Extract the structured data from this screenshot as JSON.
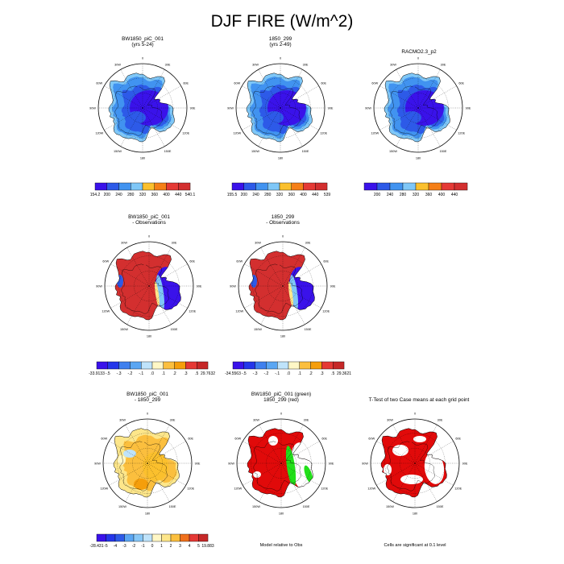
{
  "title": "DJF FIRE (W/m^2)",
  "lon_labels": [
    "0",
    "30E",
    "60E",
    "90E",
    "120E",
    "150E",
    "180",
    "150W",
    "120W",
    "90W",
    "60W",
    "30W"
  ],
  "palettes": {
    "abs": [
      "#3a12ea",
      "#2d5ae8",
      "#4193f0",
      "#7fc7f7",
      "#f9f06b",
      "#fbc02d",
      "#f57f17",
      "#e53935",
      "#d32f2f"
    ],
    "diff": [
      "#3a12ea",
      "#2436ea",
      "#2d5ae8",
      "#3f80ee",
      "#5aa6f3",
      "#87c7f7",
      "#bfe3fb",
      "#fff7c6",
      "#fde68a",
      "#fbbf3e",
      "#f59e0b",
      "#f0701c",
      "#e53935",
      "#c62828"
    ],
    "significant_red": "#e10a0a",
    "model_red": "#e10a0a",
    "model_green": "#22e01a",
    "gray": "#d9d9d9"
  },
  "panels": [
    {
      "id": "p1",
      "title": [
        "BW1850_piC_001",
        "(yrs 5-24)"
      ],
      "colorbar": {
        "palette": "abs",
        "labels": [
          "154.2",
          "200",
          "240",
          "280",
          "320",
          "360",
          "400",
          "440",
          "540.1"
        ]
      }
    },
    {
      "id": "p2",
      "title": [
        "1850_299",
        "(yrs 2-49)"
      ],
      "colorbar": {
        "palette": "abs",
        "labels": [
          "155.5",
          "200",
          "240",
          "280",
          "320",
          "360",
          "400",
          "440",
          "539"
        ]
      }
    },
    {
      "id": "p3",
      "title": [
        "RACMO2.3_p2"
      ],
      "colorbar": {
        "palette": "abs",
        "labels": [
          "200",
          "240",
          "280",
          "320",
          "360",
          "400",
          "440"
        ]
      }
    },
    {
      "id": "p4",
      "title": [
        "BW1850_piC_001",
        "- Observations"
      ],
      "colorbar": {
        "palette": "diff",
        "labels": [
          "-33.9133",
          "-.5",
          "-.3",
          "-.2",
          "-.1",
          ".0",
          ".1",
          ".2",
          ".3",
          ".5",
          "29.7632"
        ]
      }
    },
    {
      "id": "p5",
      "title": [
        "1850_299",
        "- Observations"
      ],
      "colorbar": {
        "palette": "diff",
        "labels": [
          "-34.5563",
          "-.5",
          "-.3",
          "-.2",
          "-.1",
          ".0",
          ".1",
          ".2",
          ".3",
          ".5",
          "29.3621"
        ]
      }
    },
    {
      "id": "p6",
      "title": [
        "BW1850_piC_001",
        "- 1850_299"
      ],
      "colorbar": {
        "palette": "diff",
        "labels": [
          "-28.431",
          "-5",
          "-4",
          "-3",
          "-2",
          "-1",
          "0",
          "1",
          "2",
          "3",
          "4",
          "5",
          "19.883"
        ]
      }
    },
    {
      "id": "p7",
      "title": [
        "BW1850_piC_001 (green)",
        "1850_299 (red)"
      ],
      "note": "Model relative to Obs"
    },
    {
      "id": "p8",
      "title": [
        "T-Test of two Case means at each grid point"
      ],
      "note": "Cells are significant at 0.1 level"
    }
  ]
}
